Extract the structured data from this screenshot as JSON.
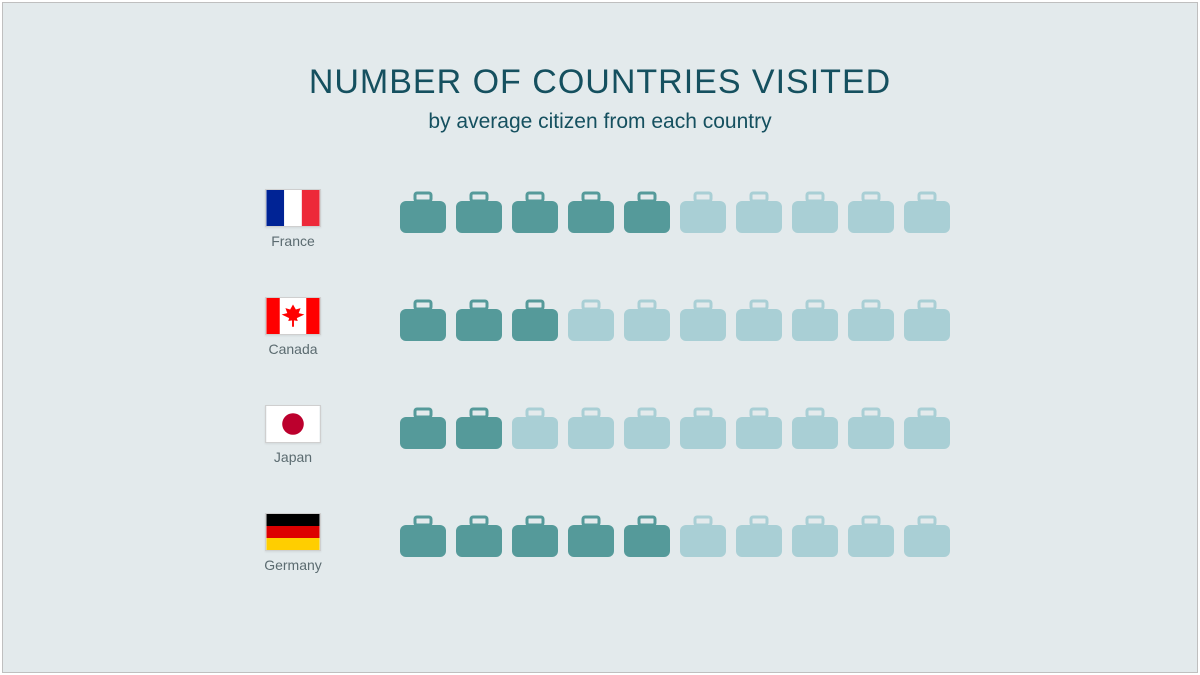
{
  "title": "NUMBER OF COUNTRIES VISITED",
  "subtitle": "by average citizen from each country",
  "title_color": "#15505f",
  "subtitle_color": "#15505f",
  "title_fontsize": 34,
  "subtitle_fontsize": 21,
  "background_color": "#e3eaec",
  "frame_border_color": "#bfbfbf",
  "label_color": "#5b6b70",
  "label_fontsize": 14,
  "icon_total": 10,
  "icon_filled_color": "#559a9a",
  "icon_empty_color": "#a9cfd5",
  "countries": [
    {
      "name": "France",
      "value": 5,
      "flag": "france"
    },
    {
      "name": "Canada",
      "value": 3,
      "flag": "canada"
    },
    {
      "name": "Japan",
      "value": 2,
      "flag": "japan"
    },
    {
      "name": "Germany",
      "value": 5,
      "flag": "germany"
    }
  ],
  "flags": {
    "france": {
      "type": "vertical-tricolor",
      "colors": [
        "#002395",
        "#ffffff",
        "#ed2939"
      ]
    },
    "canada": {
      "type": "canada",
      "bg": "#ffffff",
      "side": "#ff0000",
      "leaf": "#ff0000"
    },
    "japan": {
      "type": "japan",
      "bg": "#ffffff",
      "circle": "#bc002d"
    },
    "germany": {
      "type": "horizontal-tricolor",
      "colors": [
        "#000000",
        "#dd0000",
        "#ffce00"
      ]
    }
  }
}
